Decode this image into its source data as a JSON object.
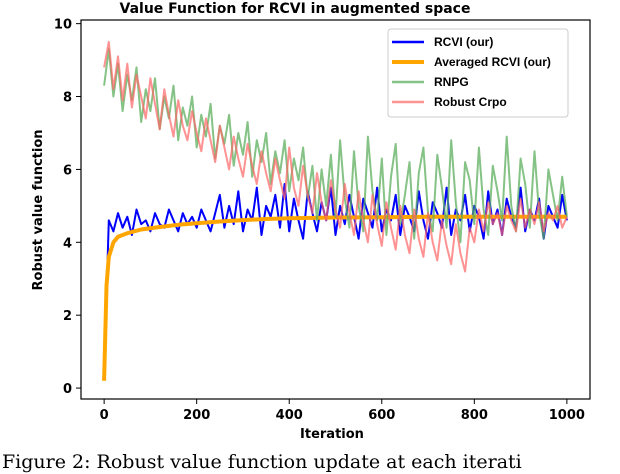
{
  "chart_data": {
    "type": "line",
    "title": "Value Function for RCVI in augmented space",
    "xlabel": "Iteration",
    "ylabel": "Robust value function",
    "xlim": [
      -50,
      1050
    ],
    "ylim": [
      -0.3,
      10.1
    ],
    "xticks": [
      0,
      200,
      400,
      600,
      800,
      1000
    ],
    "yticks": [
      0,
      2,
      4,
      6,
      8,
      10
    ],
    "grid": false,
    "legend_position": "top-right",
    "series": [
      {
        "name": "RCVI (our)",
        "color": "#0000ff",
        "x_range": [
          0,
          1000
        ],
        "values": [
          0.3,
          4.6,
          4.3,
          4.8,
          4.4,
          4.7,
          4.2,
          4.9,
          4.5,
          4.6,
          4.3,
          4.8,
          4.5,
          4.4,
          4.9,
          4.6,
          4.3,
          4.8,
          4.5,
          4.7,
          4.4,
          4.9,
          4.6,
          4.3,
          4.8,
          5.3,
          4.4,
          5.0,
          4.5,
          5.4,
          4.3,
          4.9,
          4.6,
          5.5,
          4.2,
          5.0,
          4.7,
          5.3,
          4.4,
          5.6,
          4.3,
          5.2,
          4.6,
          4.1,
          5.4,
          4.8,
          4.3,
          5.1,
          4.6,
          5.5,
          4.2,
          5.0,
          4.5,
          5.3,
          4.7,
          4.1,
          5.2,
          4.8,
          4.4,
          5.5,
          4.3,
          4.9,
          4.6,
          5.3,
          4.2,
          5.0,
          4.7,
          4.3,
          5.4,
          4.6,
          4.1,
          5.1,
          4.8,
          4.4,
          5.5,
          4.2,
          4.9,
          4.6,
          5.3,
          4.3,
          5.0,
          4.7,
          4.1,
          5.4,
          4.5,
          4.9,
          4.2,
          5.2,
          4.7,
          4.4,
          5.5,
          4.3,
          4.9,
          4.6,
          5.2,
          4.1,
          5.0,
          4.7,
          4.4,
          5.3,
          4.6
        ]
      },
      {
        "name": "Averaged RCVI (our)",
        "color": "#ffa500",
        "x": [
          0,
          5,
          10,
          20,
          30,
          50,
          80,
          120,
          160,
          200,
          250,
          300,
          350,
          400,
          500,
          600,
          700,
          800,
          900,
          1000
        ],
        "values": [
          0.2,
          2.8,
          3.6,
          4.0,
          4.15,
          4.25,
          4.35,
          4.42,
          4.48,
          4.52,
          4.57,
          4.61,
          4.64,
          4.66,
          4.68,
          4.69,
          4.7,
          4.7,
          4.7,
          4.7
        ]
      },
      {
        "name": "RNPG",
        "color": "#5cad5c",
        "x_range": [
          0,
          1000
        ],
        "values": [
          8.3,
          9.3,
          8.0,
          8.9,
          7.6,
          8.6,
          7.9,
          8.8,
          7.3,
          8.2,
          7.6,
          8.5,
          7.1,
          8.0,
          7.4,
          8.3,
          6.8,
          7.7,
          7.2,
          8.0,
          6.6,
          7.5,
          6.9,
          7.8,
          6.3,
          7.2,
          6.7,
          7.5,
          6.1,
          7.0,
          6.4,
          7.3,
          5.8,
          6.8,
          6.2,
          7.0,
          5.6,
          6.5,
          5.9,
          6.8,
          5.4,
          6.3,
          5.7,
          6.6,
          5.2,
          6.1,
          4.6,
          6.0,
          5.0,
          6.4,
          4.7,
          6.8,
          5.2,
          4.4,
          6.5,
          5.0,
          4.3,
          6.9,
          5.4,
          4.6,
          6.3,
          4.2,
          5.8,
          6.7,
          4.5,
          5.3,
          6.2,
          4.1,
          5.9,
          6.6,
          4.8,
          4.3,
          6.4,
          5.5,
          4.4,
          6.8,
          5.1,
          4.0,
          6.2,
          5.7,
          4.5,
          6.6,
          4.9,
          4.2,
          6.1,
          5.4,
          4.6,
          6.9,
          5.0,
          4.3,
          6.3,
          5.6,
          4.4,
          6.5,
          4.8,
          4.1,
          6.0,
          5.3,
          4.6,
          5.8,
          4.7
        ]
      },
      {
        "name": "Robust Crpo",
        "color": "#ff6464",
        "x_range": [
          0,
          1000
        ],
        "values": [
          8.8,
          9.5,
          8.2,
          9.1,
          7.9,
          8.9,
          7.7,
          8.6,
          8.0,
          7.4,
          8.5,
          7.8,
          7.1,
          8.2,
          7.5,
          6.9,
          7.9,
          7.2,
          6.8,
          7.6,
          7.0,
          6.5,
          7.4,
          6.8,
          6.2,
          7.2,
          6.6,
          6.0,
          6.9,
          6.3,
          5.8,
          6.7,
          6.1,
          5.6,
          6.5,
          5.9,
          5.4,
          6.3,
          5.7,
          5.2,
          6.6,
          5.5,
          5.0,
          6.1,
          5.3,
          4.8,
          5.9,
          5.1,
          4.6,
          5.7,
          4.9,
          4.4,
          5.6,
          4.8,
          4.2,
          5.4,
          4.6,
          4.0,
          5.3,
          4.5,
          3.9,
          5.1,
          4.4,
          3.8,
          5.0,
          4.2,
          3.7,
          4.9,
          4.1,
          3.6,
          4.8,
          4.0,
          3.5,
          4.6,
          3.9,
          3.4,
          4.5,
          3.7,
          3.2,
          4.4,
          4.0,
          4.9,
          4.3,
          5.1,
          4.5,
          4.8,
          4.2,
          5.0,
          4.6,
          4.3,
          5.2,
          4.4,
          4.9,
          4.5,
          5.1,
          4.3,
          4.8,
          4.6,
          5.0,
          4.4,
          4.7
        ]
      }
    ]
  },
  "caption": "Figure 2: Robust value function update at each iterati"
}
